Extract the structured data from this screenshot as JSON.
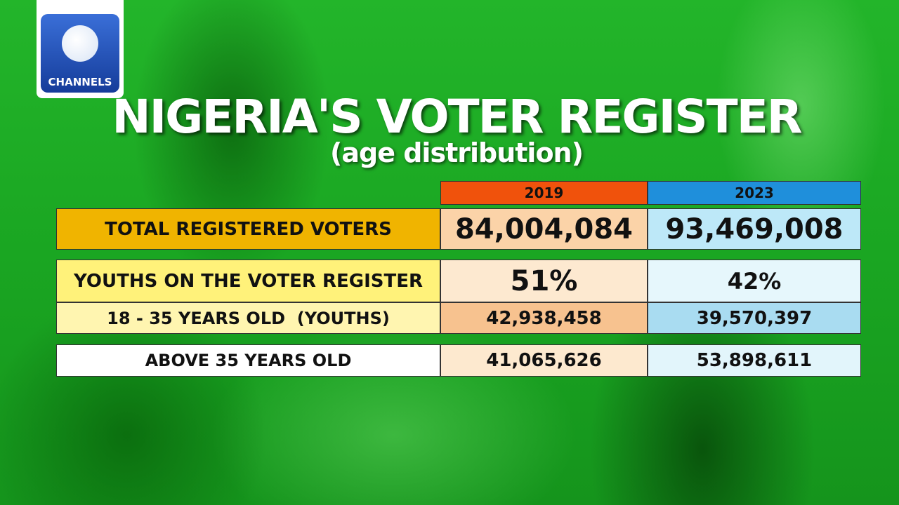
{
  "logo": {
    "text": "CHANNELS"
  },
  "header": {
    "title": "NIGERIA'S VOTER REGISTER",
    "subtitle": "(age distribution)"
  },
  "table": {
    "columns": [
      "2019",
      "2023"
    ],
    "rows": [
      [
        "TOTAL REGISTERED VOTERS",
        "84,004,084",
        "93,469,008"
      ],
      [
        "YOUTHS ON THE VOTER REGISTER",
        "51%",
        "42%"
      ],
      [
        "18 - 35 YEARS OLD  (YOUTHS)",
        "42,938,458",
        "39,570,397"
      ],
      [
        "ABOVE 35 YEARS OLD",
        "41,065,626",
        "53,898,611"
      ]
    ]
  }
}
